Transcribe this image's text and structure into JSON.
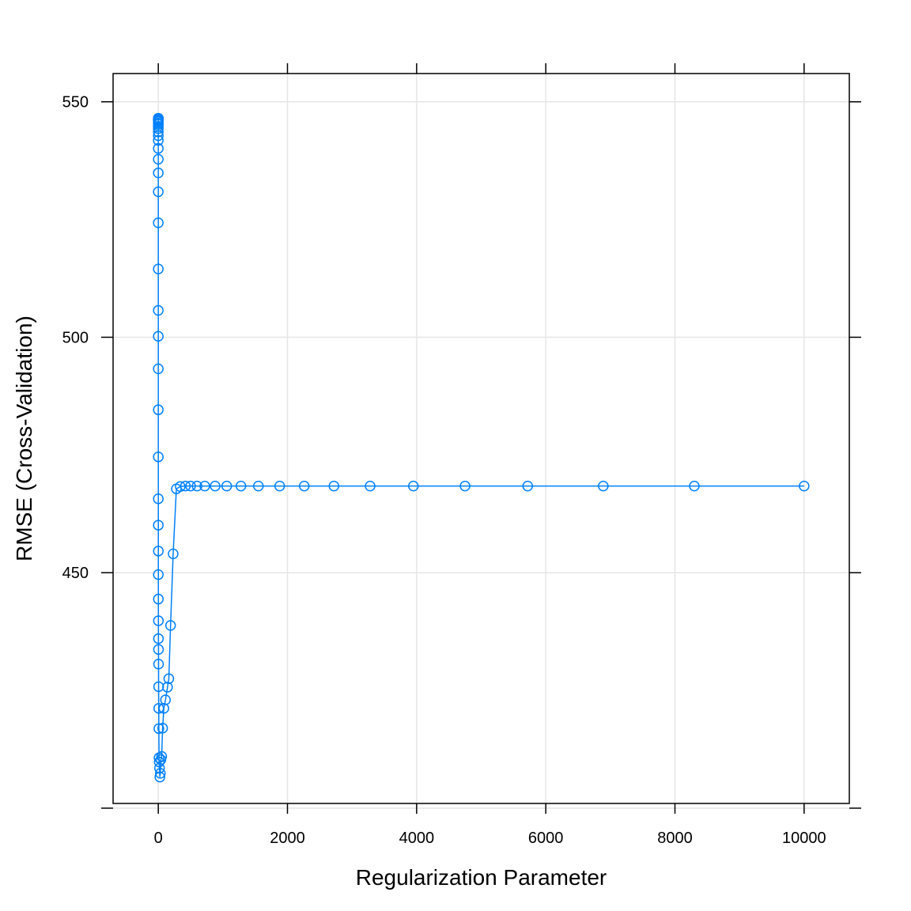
{
  "chart_data": {
    "type": "line",
    "title": "",
    "xlabel": "Regularization Parameter",
    "ylabel": "RMSE (Cross-Validation)",
    "xlim": [
      -700,
      10700
    ],
    "ylim": [
      401,
      556
    ],
    "x_ticks": [
      0,
      2000,
      4000,
      6000,
      8000,
      10000
    ],
    "x_tick_labels": [
      "0",
      "2000",
      "4000",
      "6000",
      "8000",
      "10000"
    ],
    "y_ticks": [
      400,
      450,
      500,
      550
    ],
    "y_tick_labels": [
      "",
      "450",
      "500",
      "550"
    ],
    "grid": true,
    "markers": "open-circle",
    "series": [
      {
        "color": "#0080ff",
        "points": [
          [
            0.0,
            546.5
          ],
          [
            0.0,
            546.5
          ],
          [
            0.0,
            546.4
          ],
          [
            0.0,
            546.4
          ],
          [
            0.0,
            546.3
          ],
          [
            0.0,
            546.2
          ],
          [
            0.0,
            546.0
          ],
          [
            0.0,
            545.8
          ],
          [
            0.0,
            545.5
          ],
          [
            0.0,
            545.2
          ],
          [
            0.0,
            544.8
          ],
          [
            0.0,
            544.3
          ],
          [
            0.0,
            543.6
          ],
          [
            0.0,
            542.8
          ],
          [
            0.0,
            541.8
          ],
          [
            0.0,
            540.1
          ],
          [
            0.0,
            537.8
          ],
          [
            0.0,
            534.9
          ],
          [
            0.0,
            530.9
          ],
          [
            0.0,
            524.3
          ],
          [
            0.1,
            514.5
          ],
          [
            0.1,
            505.7
          ],
          [
            0.2,
            500.2
          ],
          [
            0.2,
            493.3
          ],
          [
            0.3,
            484.6
          ],
          [
            0.4,
            474.6
          ],
          [
            0.6,
            465.7
          ],
          [
            0.7,
            460.1
          ],
          [
            0.9,
            454.6
          ],
          [
            1.2,
            449.6
          ],
          [
            1.5,
            444.4
          ],
          [
            1.9,
            439.8
          ],
          [
            2.5,
            436.0
          ],
          [
            3.2,
            433.7
          ],
          [
            4.1,
            430.6
          ],
          [
            5.3,
            425.8
          ],
          [
            6.9,
            421.2
          ],
          [
            8.9,
            416.9
          ],
          [
            11.4,
            410.7
          ],
          [
            14.7,
            409.8
          ],
          [
            18.9,
            408.5
          ],
          [
            24.4,
            406.6
          ],
          [
            31.4,
            407.4
          ],
          [
            40.4,
            410.3
          ],
          [
            52.0,
            411.0
          ],
          [
            67.0,
            417.0
          ],
          [
            86.3,
            421.2
          ],
          [
            111.1,
            423.0
          ],
          [
            143.0,
            425.7
          ],
          [
            163.0,
            427.5
          ],
          [
            190.0,
            438.8
          ],
          [
            230.0,
            454.0
          ],
          [
            280.0,
            467.8
          ],
          [
            340.0,
            468.3
          ],
          [
            420.0,
            468.4
          ],
          [
            500.0,
            468.4
          ],
          [
            600.0,
            468.4
          ],
          [
            720.0,
            468.4
          ],
          [
            880.0,
            468.4
          ],
          [
            1060.0,
            468.4
          ],
          [
            1280.0,
            468.4
          ],
          [
            1550.0,
            468.4
          ],
          [
            1880.0,
            468.4
          ],
          [
            2260.0,
            468.4
          ],
          [
            2720.0,
            468.4
          ],
          [
            3280.0,
            468.4
          ],
          [
            3950.0,
            468.4
          ],
          [
            4750.0,
            468.4
          ],
          [
            5720.0,
            468.4
          ],
          [
            6890.0,
            468.4
          ],
          [
            8300.0,
            468.4
          ],
          [
            10000.0,
            468.4
          ]
        ]
      }
    ]
  }
}
